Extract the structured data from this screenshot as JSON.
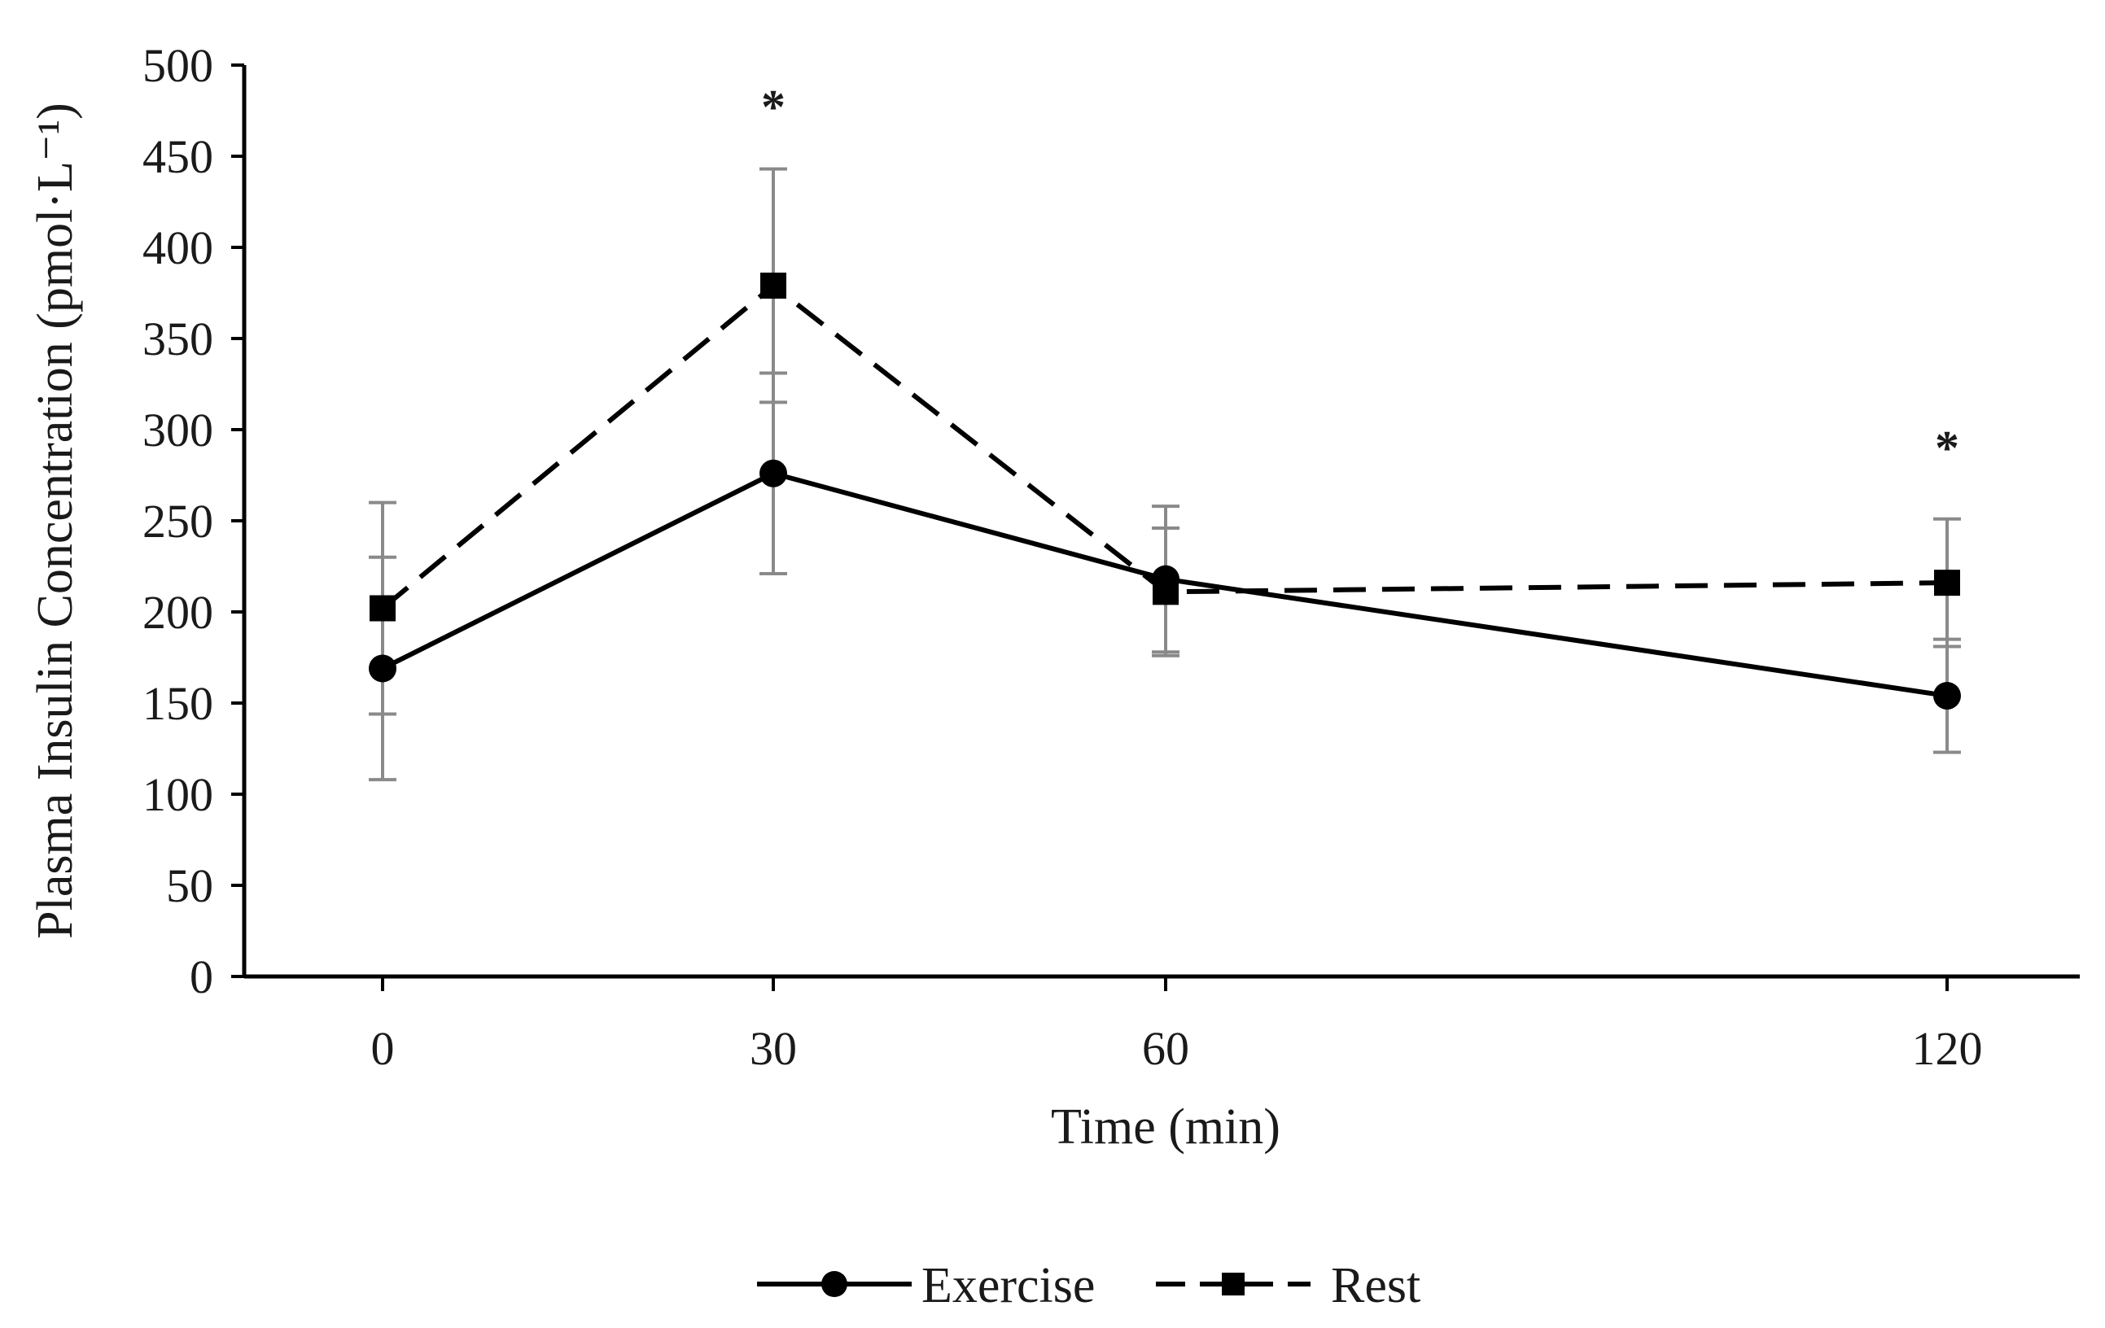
{
  "chart_data": {
    "type": "line",
    "title": "",
    "xlabel": "Time (min)",
    "ylabel": "Plasma Insulin Concentration (pmol·L⁻¹)",
    "categories": [
      "0",
      "30",
      "60",
      "120"
    ],
    "ylim": [
      0,
      500
    ],
    "yticks": [
      0,
      50,
      100,
      150,
      200,
      250,
      300,
      350,
      400,
      450,
      500
    ],
    "grid": false,
    "legend_position": "bottom",
    "series": [
      {
        "name": "Exercise",
        "marker": "circle",
        "line_style": "solid",
        "values": [
          169,
          276,
          218,
          154
        ],
        "error": [
          61,
          55,
          40,
          31
        ]
      },
      {
        "name": "Rest",
        "marker": "square",
        "line_style": "dashed",
        "values": [
          202,
          379,
          211,
          216
        ],
        "error": [
          58,
          64,
          35,
          35
        ]
      }
    ],
    "annotations": [
      {
        "category": "30",
        "text": "*",
        "y": 485
      },
      {
        "category": "120",
        "text": "*",
        "y": 298
      }
    ]
  }
}
